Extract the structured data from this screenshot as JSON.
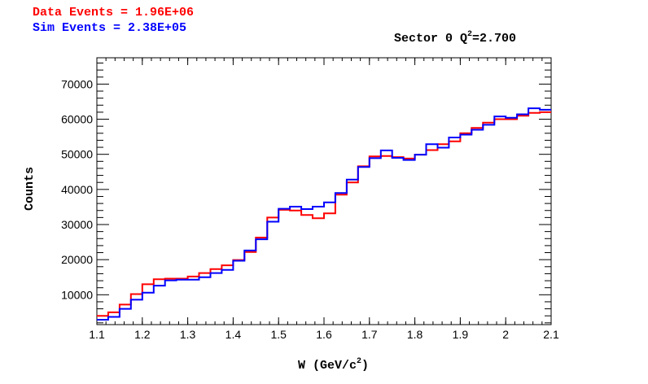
{
  "legend": {
    "data_label": "Data Events = 1.96E+06",
    "sim_label": "Sim Events = 2.38E+05"
  },
  "colors": {
    "data": "#ff0000",
    "sim": "#0000ff",
    "frame": "#000000"
  },
  "chart_data": {
    "type": "line",
    "style": "step-histogram",
    "title_prefix": "Sector 0 Q",
    "title_sup": "2",
    "title_suffix": "=2.700",
    "xlabel_prefix": "W (GeV/c",
    "xlabel_sup": "2",
    "xlabel_suffix": ")",
    "ylabel": "Counts",
    "xlim": [
      1.1,
      2.1
    ],
    "ylim": [
      1500,
      77500
    ],
    "x_ticks": [
      "1.1",
      "1.2",
      "1.3",
      "1.4",
      "1.5",
      "1.6",
      "1.7",
      "1.8",
      "1.9",
      "2",
      "2.1"
    ],
    "x_tick_values": [
      1.1,
      1.2,
      1.3,
      1.4,
      1.5,
      1.6,
      1.7,
      1.8,
      1.9,
      2.0,
      2.1
    ],
    "y_ticks": [
      "10000",
      "20000",
      "30000",
      "40000",
      "50000",
      "60000",
      "70000"
    ],
    "y_tick_values": [
      10000,
      20000,
      30000,
      40000,
      50000,
      60000,
      70000
    ],
    "bin_edges": [
      1.1,
      1.125,
      1.15,
      1.175,
      1.2,
      1.225,
      1.25,
      1.275,
      1.3,
      1.325,
      1.35,
      1.375,
      1.4,
      1.425,
      1.45,
      1.475,
      1.5,
      1.525,
      1.55,
      1.575,
      1.6,
      1.625,
      1.65,
      1.675,
      1.7,
      1.725,
      1.75,
      1.775,
      1.8,
      1.825,
      1.85,
      1.875,
      1.9,
      1.925,
      1.95,
      1.975,
      2.0,
      2.025,
      2.05,
      2.075,
      2.1
    ],
    "series": [
      {
        "name": "Data Events = 1.96E+06",
        "color": "#ff0000",
        "values": [
          4000,
          5000,
          7200,
          10200,
          13000,
          14400,
          14600,
          14600,
          15200,
          16200,
          17300,
          18400,
          19900,
          22200,
          26300,
          32000,
          34200,
          34000,
          32700,
          31800,
          33200,
          38500,
          42000,
          46600,
          49400,
          49500,
          49200,
          48800,
          49900,
          51200,
          52900,
          53700,
          56000,
          57500,
          59000,
          60000,
          60000,
          61000,
          61800,
          62000
        ]
      },
      {
        "name": "Sim Events = 2.38E+05",
        "color": "#0000ff",
        "values": [
          2900,
          3700,
          6000,
          8600,
          10600,
          12600,
          14100,
          14300,
          14300,
          15000,
          16200,
          17100,
          19700,
          22600,
          25800,
          30800,
          34500,
          35100,
          34400,
          35100,
          36300,
          39000,
          42800,
          46400,
          48900,
          51100,
          49000,
          48400,
          49900,
          52900,
          51900,
          54800,
          55600,
          57000,
          58400,
          60800,
          60400,
          61400,
          63100,
          62700
        ]
      }
    ],
    "grid": false,
    "legend_position": "top-left"
  }
}
